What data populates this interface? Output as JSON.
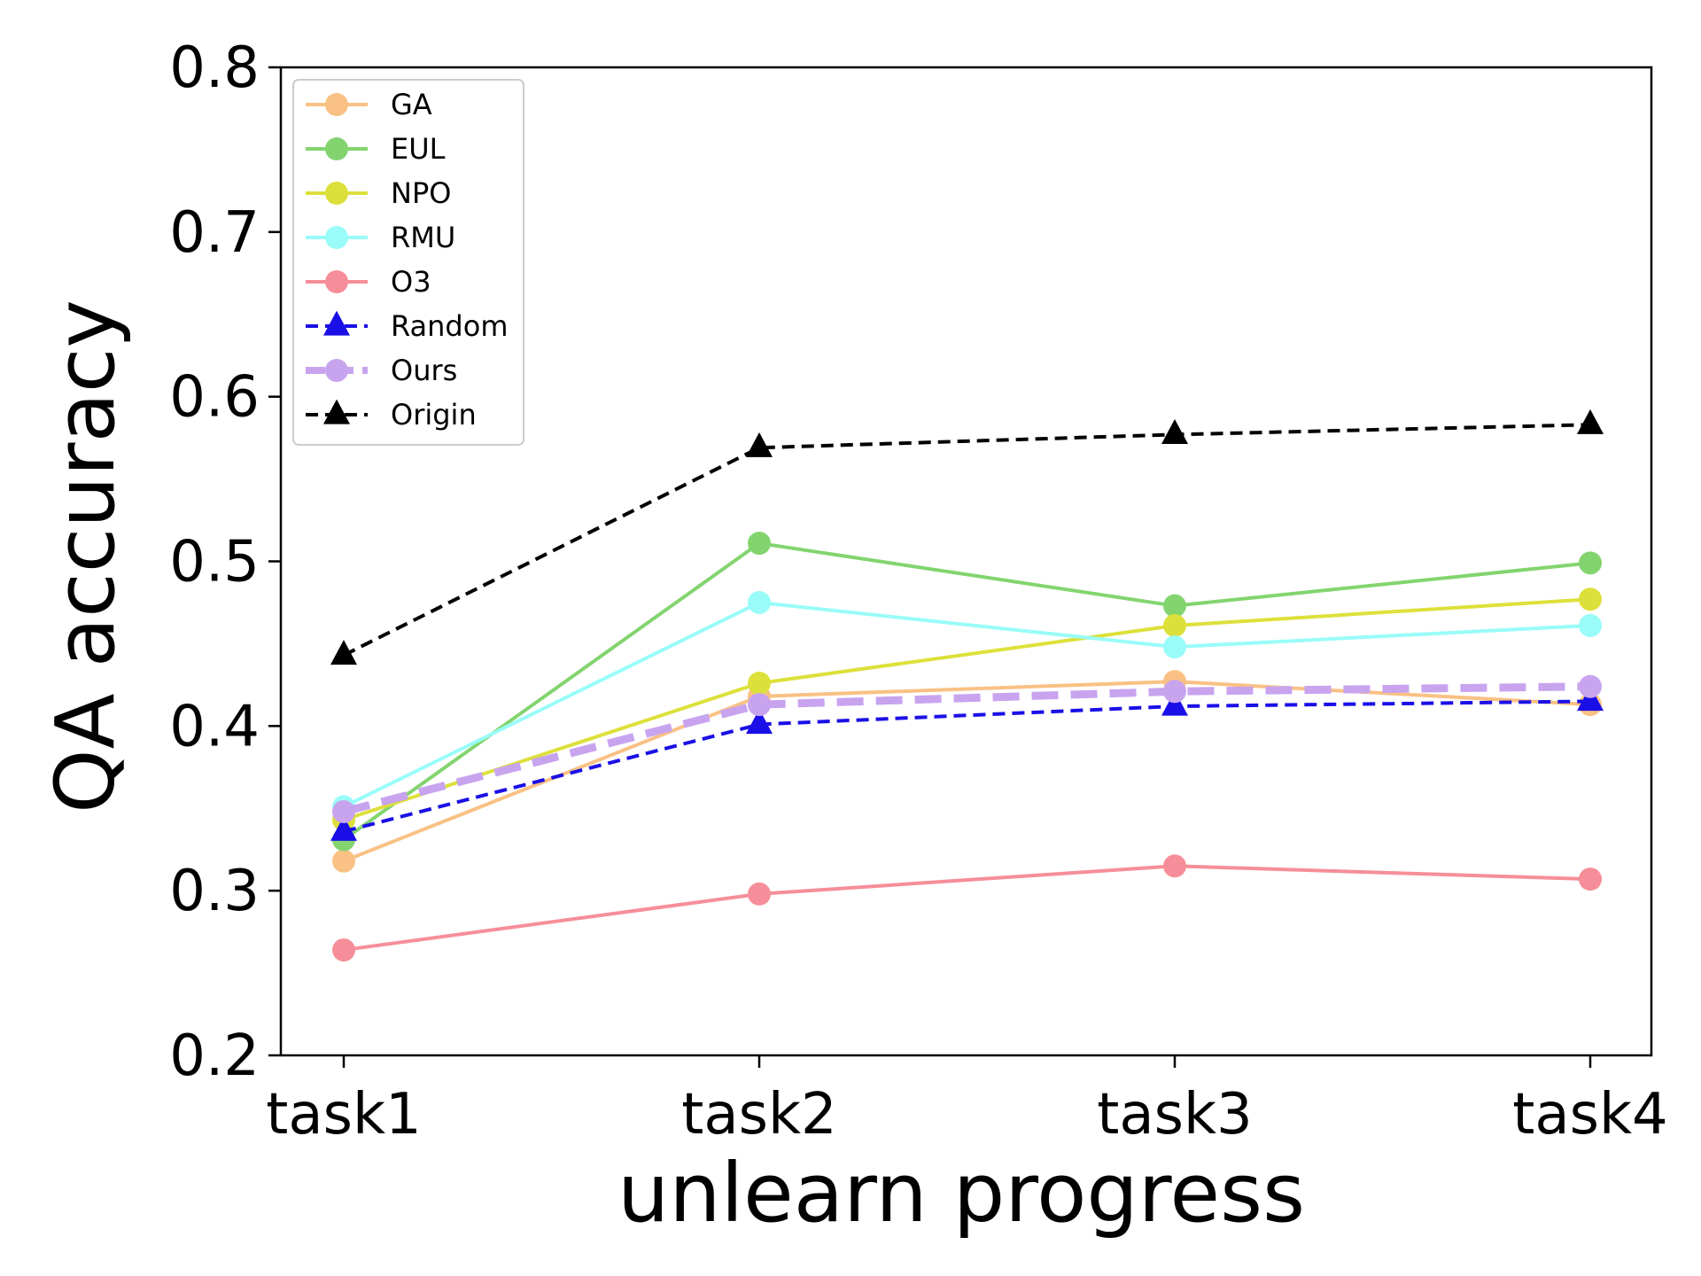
{
  "chart_data": {
    "type": "line",
    "categories": [
      "task1",
      "task2",
      "task3",
      "task4"
    ],
    "xlabel": "unlearn progress",
    "ylabel": "QA accuracy",
    "ylim": [
      0.2,
      0.8
    ],
    "yticks": [
      "0.2",
      "0.3",
      "0.4",
      "0.5",
      "0.6",
      "0.7",
      "0.8"
    ],
    "grid": false,
    "legend_position": "top-left",
    "series": [
      {
        "name": "GA",
        "values": [
          0.318,
          0.418,
          0.427,
          0.413
        ],
        "color": "#f9c184",
        "marker": "circle",
        "style": "solid"
      },
      {
        "name": "EUL",
        "values": [
          0.331,
          0.511,
          0.473,
          0.499
        ],
        "color": "#83d46f",
        "marker": "circle",
        "style": "solid"
      },
      {
        "name": "NPO",
        "values": [
          0.343,
          0.426,
          0.461,
          0.477
        ],
        "color": "#dde03a",
        "marker": "circle",
        "style": "solid"
      },
      {
        "name": "RMU",
        "values": [
          0.351,
          0.475,
          0.448,
          0.461
        ],
        "color": "#99fcf8",
        "marker": "circle",
        "style": "solid"
      },
      {
        "name": "O3",
        "values": [
          0.264,
          0.298,
          0.315,
          0.307
        ],
        "color": "#f68e99",
        "marker": "circle",
        "style": "solid"
      },
      {
        "name": "Random",
        "values": [
          0.336,
          0.401,
          0.412,
          0.415
        ],
        "color": "#1a0fe6",
        "marker": "triangle",
        "style": "dashed"
      },
      {
        "name": "Ours",
        "values": [
          0.348,
          0.413,
          0.421,
          0.424
        ],
        "color": "#c8a4ef",
        "marker": "circle",
        "style": "dashed-thick"
      },
      {
        "name": "Origin",
        "values": [
          0.443,
          0.569,
          0.577,
          0.583
        ],
        "color": "#000000",
        "marker": "triangle",
        "style": "dashed"
      }
    ]
  }
}
